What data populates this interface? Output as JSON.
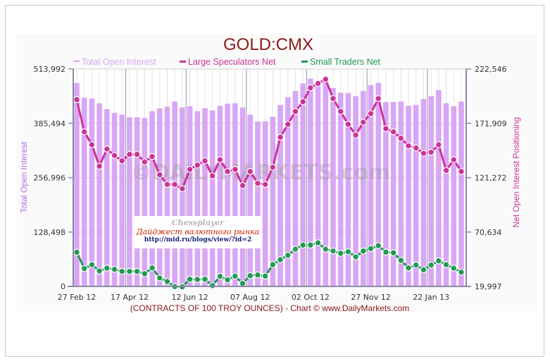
{
  "chart_data": {
    "type": "bar+line",
    "title": "GOLD:CMX",
    "xlabel": "(CONTRACTS OF 100 TROY OUNCES)  - Chart © www.DailyMarkets.com",
    "ylabel": "Total Open Interest",
    "y2label": "Net Open Interest Positioning",
    "watermark": "©DAILYMARKETS.com",
    "legend_position": "top-center",
    "ylim": [
      0,
      513992
    ],
    "y2lim": [
      19997,
      222546
    ],
    "yticks": [
      "0",
      "128,498",
      "256,996",
      "385,494",
      "513,992"
    ],
    "y2ticks": [
      "19,997",
      "70,634",
      "121,272",
      "171,909",
      "222,546"
    ],
    "xtick_labels": [
      "27 Feb 12",
      "17 Apr 12",
      "12 Jun 12",
      "07 Aug 12",
      "02 Oct 12",
      "27 Nov 12",
      "22 Jan 13"
    ],
    "xtick_index": [
      0,
      7,
      15,
      23,
      31,
      39,
      47
    ],
    "series": [
      {
        "name": "Total Open Interest",
        "axis": "left",
        "kind": "bar",
        "color": "#d9a6f5",
        "values": [
          481000,
          446000,
          444000,
          433000,
          419000,
          410000,
          406000,
          400000,
          400000,
          398000,
          414000,
          421000,
          425000,
          437000,
          423000,
          426000,
          414000,
          421000,
          416000,
          427000,
          432000,
          433000,
          423000,
          406000,
          390000,
          390000,
          401000,
          429000,
          447000,
          462000,
          480000,
          491000,
          480000,
          487000,
          469000,
          458000,
          457000,
          450000,
          462000,
          476000,
          481000,
          436000,
          436000,
          437000,
          427000,
          429000,
          443000,
          450000,
          464000,
          433000,
          426000,
          437000
        ]
      },
      {
        "name": "Large Speculators Net",
        "axis": "right",
        "kind": "line",
        "color": "#cc3399",
        "values": [
          194000,
          164000,
          152000,
          132000,
          148000,
          142000,
          137000,
          143000,
          143000,
          136000,
          141000,
          124000,
          115000,
          115000,
          111000,
          129000,
          133000,
          137000,
          123000,
          138000,
          127000,
          129000,
          114000,
          127000,
          116000,
          115000,
          131000,
          159000,
          171000,
          183000,
          192000,
          205000,
          209000,
          213000,
          195000,
          183000,
          171000,
          161000,
          173000,
          181000,
          195000,
          167000,
          164000,
          158000,
          151000,
          149000,
          144000,
          145000,
          152000,
          128000,
          138000,
          127000
        ]
      },
      {
        "name": "Small Traders Net",
        "axis": "right",
        "kind": "line",
        "color": "#229955",
        "values": [
          51900,
          36600,
          40300,
          34400,
          37000,
          35900,
          34000,
          34000,
          34000,
          31800,
          37200,
          27900,
          24600,
          19800,
          19600,
          26700,
          26400,
          26700,
          20700,
          29400,
          26100,
          29600,
          22800,
          30000,
          30700,
          29600,
          40300,
          44900,
          49000,
          54700,
          58500,
          58500,
          60600,
          54700,
          53000,
          50800,
          52300,
          47500,
          53000,
          55200,
          58000,
          51900,
          51300,
          44300,
          37200,
          39900,
          35500,
          39900,
          43800,
          40300,
          37000,
          33300
        ]
      }
    ]
  },
  "overlay": {
    "line1": "Chessplayer",
    "line2": "Дайджест валютного рынка",
    "line3": "http://mid.ru/blogs/view/?id=2"
  }
}
